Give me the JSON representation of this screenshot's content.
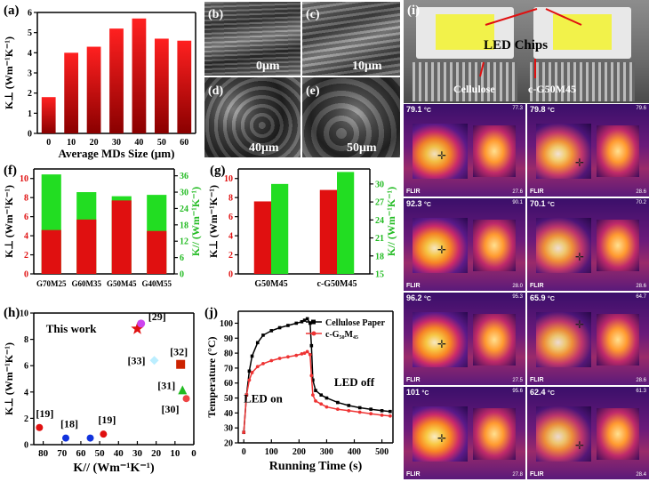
{
  "panels": {
    "a": {
      "label": "(a)"
    },
    "b": {
      "label": "(b)",
      "scale": "0μm"
    },
    "c": {
      "label": "(c)",
      "scale": "10μm"
    },
    "d": {
      "label": "(d)",
      "scale": "40μm"
    },
    "e": {
      "label": "(e)",
      "scale": "50μm"
    },
    "f": {
      "label": "(f)"
    },
    "g": {
      "label": "(g)"
    },
    "h": {
      "label": "(h)"
    },
    "i": {
      "label": "(i)",
      "photo_labels": {
        "chips": "LED Chips",
        "left": "Cellulose",
        "right": "c-G50M45"
      }
    },
    "j": {
      "label": "(j)"
    }
  },
  "colors": {
    "red": "#e01010",
    "green": "#22dd22",
    "black": "#000000"
  },
  "chart_data": [
    {
      "id": "a",
      "type": "bar",
      "categories": [
        "0",
        "10",
        "20",
        "30",
        "40",
        "50",
        "60"
      ],
      "values": [
        1.8,
        4.0,
        4.3,
        5.2,
        5.7,
        4.7,
        4.6
      ],
      "xlabel": "Average MDs Size (μm)",
      "ylabel": "K⊥ (Wm⁻¹K⁻¹)",
      "ylim": [
        0,
        6
      ],
      "yticks": [
        "0",
        "1",
        "2",
        "3",
        "4",
        "5",
        "6"
      ],
      "color": "#d01010"
    },
    {
      "id": "f",
      "type": "bar",
      "categories": [
        "G70M25",
        "G60M35",
        "G50M45",
        "G40M55"
      ],
      "series": [
        {
          "axis": "left",
          "values": [
            4.6,
            5.7,
            7.7,
            4.5
          ],
          "color": "#e01010"
        },
        {
          "axis": "right",
          "values": [
            36.5,
            30.0,
            28.5,
            29.0
          ],
          "color": "#22dd22"
        }
      ],
      "ylabel": "K⊥ (Wm⁻¹K⁻¹)",
      "ylim": [
        0,
        11
      ],
      "yticks": [
        "0",
        "2",
        "4",
        "6",
        "8",
        "10"
      ],
      "y2label": "K// (Wm⁻¹K⁻¹)",
      "y2lim": [
        0,
        38.5
      ],
      "y2ticks": [
        "0",
        "6",
        "12",
        "18",
        "24",
        "30",
        "36"
      ]
    },
    {
      "id": "g",
      "type": "bar",
      "categories": [
        "G50M45",
        "c-G50M45"
      ],
      "series": [
        {
          "axis": "left",
          "values": [
            7.6,
            8.8
          ],
          "color": "#e01010"
        },
        {
          "axis": "right",
          "values": [
            30.0,
            32.0
          ],
          "color": "#22dd22"
        }
      ],
      "ylabel": "K⊥ (Wm⁻¹K⁻¹)",
      "ylim": [
        0,
        11
      ],
      "yticks": [
        "0",
        "2",
        "4",
        "6",
        "8",
        "10"
      ],
      "y2label": "K// (Wm⁻¹K⁻¹)",
      "y2lim": [
        15,
        32.5
      ],
      "y2ticks": [
        "15",
        "18",
        "21",
        "24",
        "27",
        "30"
      ]
    },
    {
      "id": "h",
      "type": "scatter",
      "xlabel": "K// (Wm⁻¹K⁻¹)",
      "ylabel": "K⊥ (Wm⁻¹K⁻¹)",
      "xlim": [
        85,
        0
      ],
      "ylim": [
        0,
        10
      ],
      "xticks": [
        "80",
        "70",
        "60",
        "50",
        "40",
        "30",
        "20",
        "10",
        "0"
      ],
      "yticks": [
        "0",
        "2",
        "4",
        "6",
        "8",
        "10"
      ],
      "points": [
        {
          "x": 30,
          "y": 8.8,
          "label": "This work",
          "color": "#e01010",
          "shape": "star"
        },
        {
          "x": 28,
          "y": 9.2,
          "label": "[29]",
          "color": "#cc44ee",
          "shape": "hex"
        },
        {
          "x": 7,
          "y": 6.1,
          "label": "[32]",
          "color": "#cc2200",
          "shape": "square"
        },
        {
          "x": 21,
          "y": 6.4,
          "label": "[33]",
          "color": "#bbeeff",
          "shape": "diamond"
        },
        {
          "x": 6,
          "y": 4.1,
          "label": "[31]",
          "color": "#22bb22",
          "shape": "triangle"
        },
        {
          "x": 4,
          "y": 3.5,
          "label": "[30]",
          "color": "#ee4444",
          "shape": "circle"
        },
        {
          "x": 82,
          "y": 1.3,
          "label": "[19]",
          "color": "#e01010",
          "shape": "circle"
        },
        {
          "x": 68,
          "y": 0.5,
          "label": "[18]",
          "color": "#1133dd",
          "shape": "circle"
        },
        {
          "x": 55,
          "y": 0.5,
          "label": "",
          "color": "#1133dd",
          "shape": "circle"
        },
        {
          "x": 48,
          "y": 0.8,
          "label": "[19]",
          "color": "#e01010",
          "shape": "circle"
        }
      ]
    },
    {
      "id": "j",
      "type": "line",
      "xlabel": "Running Time (s)",
      "ylabel": "Temperature (°C)",
      "xlim": [
        -20,
        540
      ],
      "ylim": [
        20,
        108
      ],
      "xticks": [
        "0",
        "100",
        "200",
        "300",
        "400",
        "500"
      ],
      "yticks": [
        "20",
        "30",
        "40",
        "50",
        "60",
        "70",
        "80",
        "90",
        "100"
      ],
      "annotations": [
        "LED on",
        "LED off"
      ],
      "series": [
        {
          "name": "Cellulose Paper",
          "color": "#000000",
          "marker": "square",
          "x": [
            0,
            10,
            20,
            30,
            50,
            70,
            100,
            130,
            160,
            190,
            210,
            220,
            230,
            240,
            245,
            250,
            260,
            280,
            300,
            340,
            380,
            420,
            460,
            500,
            530
          ],
          "y": [
            27,
            52,
            68,
            78,
            87,
            92,
            95,
            97,
            98.5,
            100,
            101,
            102,
            103,
            100,
            85,
            62,
            55,
            52,
            50,
            47,
            45,
            43.5,
            42.5,
            41.5,
            41
          ]
        },
        {
          "name": "c-G₅₀M₄₅",
          "color": "#ee3333",
          "marker": "circle",
          "x": [
            0,
            10,
            20,
            30,
            50,
            70,
            100,
            130,
            160,
            190,
            210,
            220,
            230,
            240,
            245,
            250,
            260,
            280,
            300,
            340,
            380,
            420,
            460,
            500,
            530
          ],
          "y": [
            27,
            52,
            62,
            67,
            71,
            73,
            75,
            76.5,
            77.5,
            78.5,
            79.5,
            80,
            81,
            79,
            65,
            52,
            48,
            46,
            44,
            42.5,
            41.5,
            40.5,
            39.5,
            38.5,
            38
          ]
        }
      ]
    }
  ],
  "thermal": {
    "brand": "FLIR",
    "cells": [
      {
        "temp": "79.1",
        "unit": "°C",
        "max": "77.3",
        "min": "27.6"
      },
      {
        "temp": "79.8",
        "unit": "°C",
        "max": "79.6",
        "min": "28.6"
      },
      {
        "temp": "92.3",
        "unit": "°C",
        "max": "90.1",
        "min": "28.0"
      },
      {
        "temp": "70.1",
        "unit": "°C",
        "max": "70.2",
        "min": "28.6"
      },
      {
        "temp": "96.2",
        "unit": "°C",
        "max": "95.3",
        "min": "27.5"
      },
      {
        "temp": "65.9",
        "unit": "°C",
        "max": "64.7",
        "min": "28.6"
      },
      {
        "temp": "101",
        "unit": "°C",
        "max": "95.6",
        "min": "27.8"
      },
      {
        "temp": "62.4",
        "unit": "°C",
        "max": "61.3",
        "min": "28.4"
      }
    ]
  }
}
